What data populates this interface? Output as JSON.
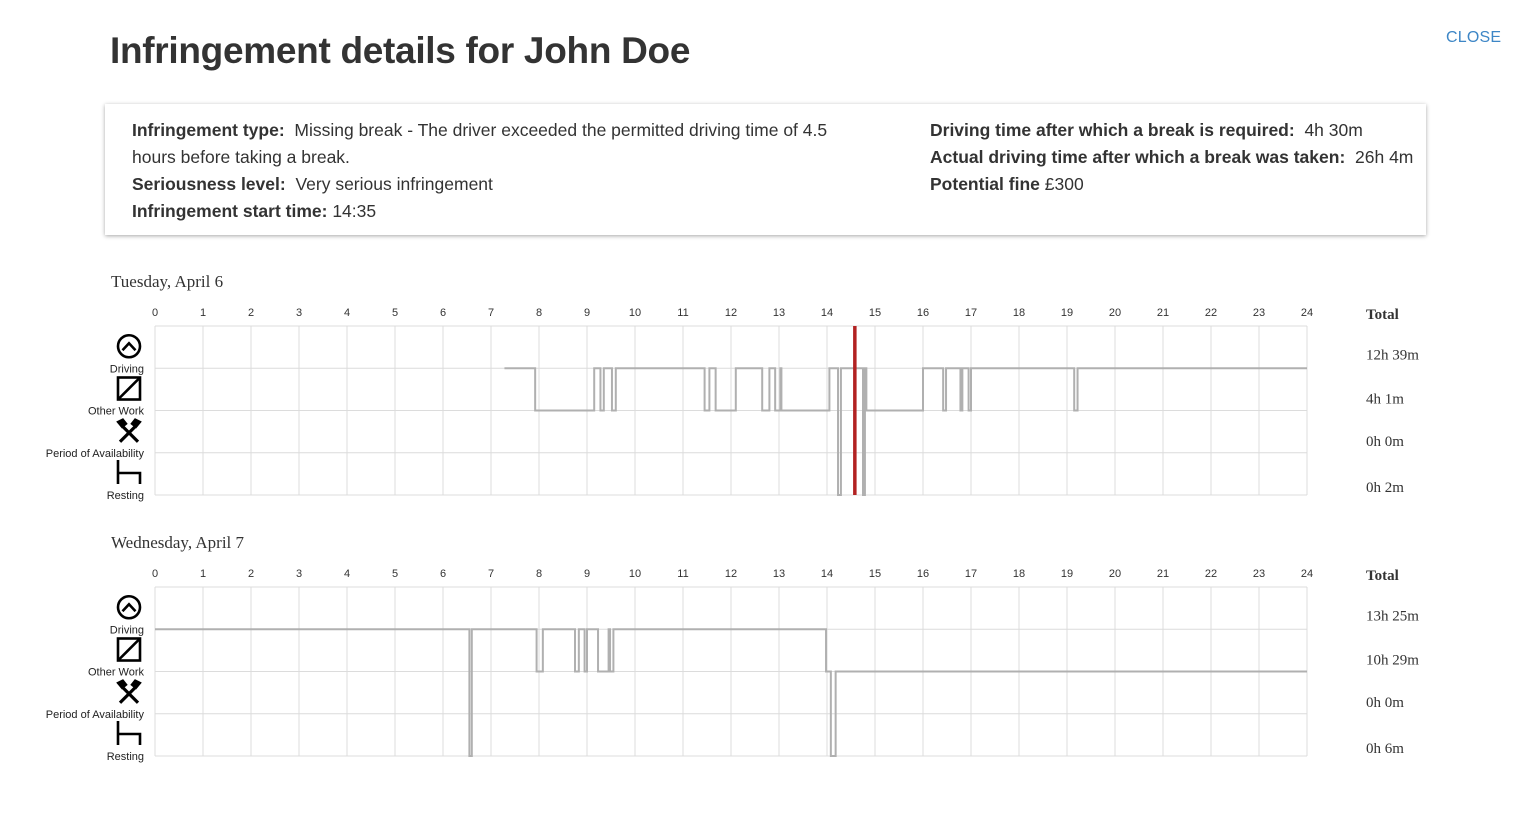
{
  "header": {
    "title": "Infringement details for John Doe",
    "close_label": "CLOSE"
  },
  "details": {
    "type_label": "Infringement type:",
    "type_value": "Missing break -  The driver exceeded the permitted driving time of 4.5 hours before taking a break.",
    "seriousness_label": "Seriousness level:",
    "seriousness_value": "Very serious infringement",
    "start_label": "Infringement start time:",
    "start_value": "14:35",
    "break_required_label": "Driving time after which a break is required:",
    "break_required_value": "4h 30m",
    "actual_label": "Actual driving time after which a break was taken:",
    "actual_value": "26h 4m",
    "fine_label": "Potential fine",
    "fine_value": "£300"
  },
  "chart_common": {
    "hours": [
      "0",
      "1",
      "2",
      "3",
      "4",
      "5",
      "6",
      "7",
      "8",
      "9",
      "10",
      "11",
      "12",
      "13",
      "14",
      "15",
      "16",
      "17",
      "18",
      "19",
      "20",
      "21",
      "22",
      "23",
      "24"
    ],
    "activities": [
      {
        "label": "Driving",
        "icon": "steering-wheel-icon"
      },
      {
        "label": "Other Work",
        "icon": "other-work-icon"
      },
      {
        "label": "Period of Availability",
        "icon": "availability-icon"
      },
      {
        "label": "Resting",
        "icon": "bed-icon"
      }
    ],
    "total_label": "Total"
  },
  "chart_data": [
    {
      "type": "line",
      "title": "Tuesday, April 6",
      "xlabel": "",
      "ylabel": "",
      "xlim": [
        0,
        24
      ],
      "categories": [
        "Driving",
        "Other Work",
        "Period of Availability",
        "Resting"
      ],
      "totals": [
        "12h 39m",
        "4h 1m",
        "0h 0m",
        "0h 2m"
      ],
      "infringement_time": 14.58,
      "segments": [
        [
          7.28,
          0
        ],
        [
          7.92,
          1
        ],
        [
          9.15,
          0
        ],
        [
          9.28,
          1
        ],
        [
          9.35,
          0
        ],
        [
          9.52,
          1
        ],
        [
          9.6,
          0
        ],
        [
          11.45,
          1
        ],
        [
          11.55,
          0
        ],
        [
          11.68,
          1
        ],
        [
          12.1,
          0
        ],
        [
          12.65,
          1
        ],
        [
          12.8,
          0
        ],
        [
          12.92,
          1
        ],
        [
          13.03,
          0
        ],
        [
          13.05,
          1
        ],
        [
          14.05,
          0
        ],
        [
          14.23,
          3
        ],
        [
          14.29,
          0
        ],
        [
          14.75,
          3
        ],
        [
          14.79,
          0
        ],
        [
          14.82,
          1
        ],
        [
          16.0,
          0
        ],
        [
          16.42,
          1
        ],
        [
          16.48,
          0
        ],
        [
          16.78,
          1
        ],
        [
          16.82,
          0
        ],
        [
          16.95,
          1
        ],
        [
          17.0,
          0
        ],
        [
          19.15,
          1
        ],
        [
          19.22,
          0
        ],
        [
          24,
          0
        ]
      ]
    },
    {
      "type": "line",
      "title": "Wednesday, April 7",
      "xlabel": "",
      "ylabel": "",
      "xlim": [
        0,
        24
      ],
      "categories": [
        "Driving",
        "Other Work",
        "Period of Availability",
        "Resting"
      ],
      "totals": [
        "13h 25m",
        "10h 29m",
        "0h 0m",
        "0h 6m"
      ],
      "segments": [
        [
          0,
          0
        ],
        [
          6.55,
          3
        ],
        [
          6.6,
          0
        ],
        [
          7.95,
          1
        ],
        [
          8.08,
          0
        ],
        [
          8.75,
          1
        ],
        [
          8.83,
          0
        ],
        [
          8.95,
          1
        ],
        [
          9.0,
          0
        ],
        [
          9.23,
          1
        ],
        [
          9.45,
          0
        ],
        [
          9.48,
          1
        ],
        [
          9.55,
          0
        ],
        [
          13.98,
          1
        ],
        [
          14.08,
          3
        ],
        [
          14.18,
          1
        ],
        [
          24,
          1
        ]
      ]
    }
  ]
}
